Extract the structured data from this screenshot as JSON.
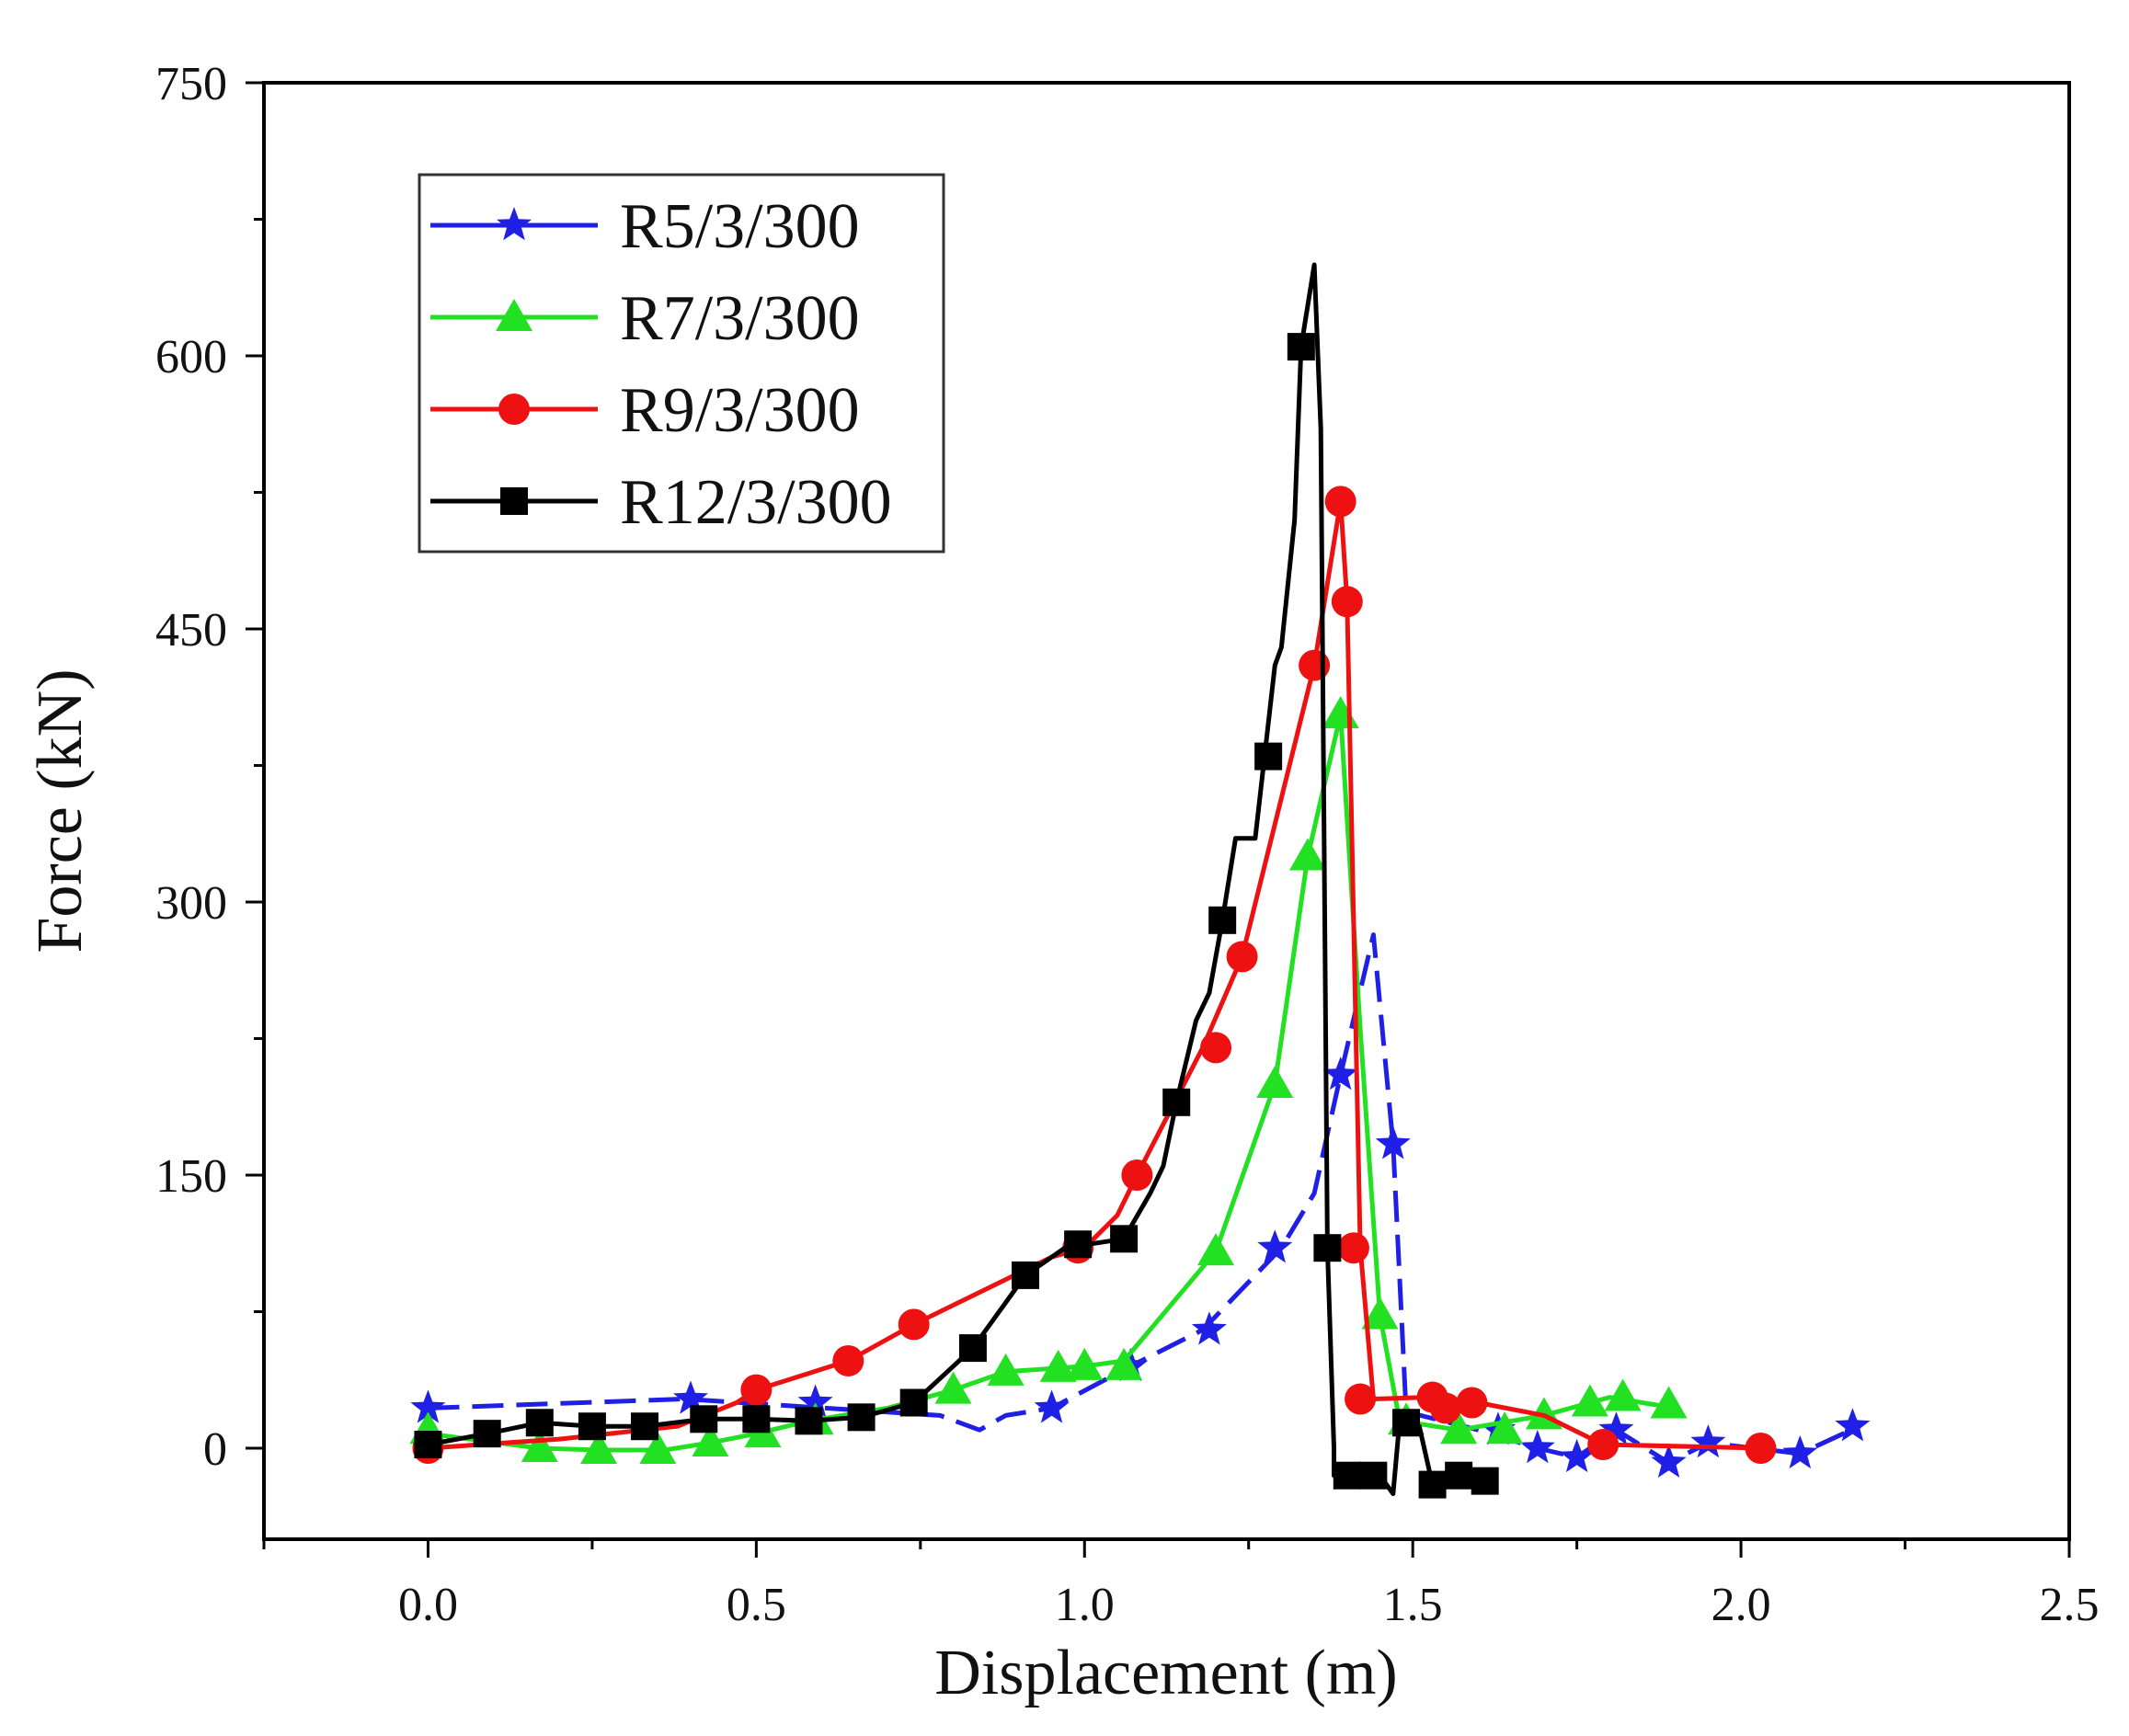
{
  "chart_data": {
    "type": "line",
    "title": "",
    "xlabel": "Displacement (m)",
    "ylabel": "Force (kN)",
    "xlim": [
      -0.25,
      2.5
    ],
    "ylim": [
      -50,
      750
    ],
    "xticks": [
      "0.0",
      "0.5",
      "1.0",
      "1.5",
      "2.0",
      "2.5"
    ],
    "yticks": [
      "0",
      "150",
      "300",
      "450",
      "600",
      "750"
    ],
    "grid": false,
    "legend_position": "top-left",
    "series": [
      {
        "name": "R5/3/300",
        "color": "#1f1fe6",
        "marker": "star",
        "line": [
          [
            0,
            22
          ],
          [
            0.39,
            27
          ],
          [
            0.78,
            18
          ],
          [
            0.84,
            10
          ],
          [
            0.88,
            18
          ],
          [
            0.95,
            22
          ],
          [
            1.07,
            45
          ],
          [
            1.18,
            65
          ],
          [
            1.3,
            110
          ],
          [
            1.35,
            140
          ],
          [
            1.39,
            205
          ],
          [
            1.44,
            282
          ],
          [
            1.47,
            167
          ],
          [
            1.49,
            20
          ],
          [
            1.6,
            10
          ],
          [
            1.69,
            0
          ],
          [
            1.75,
            -5
          ],
          [
            1.81,
            10
          ],
          [
            1.89,
            -8
          ],
          [
            1.95,
            3
          ],
          [
            2.09,
            -3
          ],
          [
            2.18,
            12
          ]
        ],
        "markers": [
          [
            0,
            22
          ],
          [
            0.4,
            27
          ],
          [
            0.59,
            25
          ],
          [
            0.95,
            22
          ],
          [
            1.07,
            45
          ],
          [
            1.19,
            65
          ],
          [
            1.29,
            110
          ],
          [
            1.39,
            205
          ],
          [
            1.47,
            167
          ],
          [
            1.63,
            10
          ],
          [
            1.69,
            0
          ],
          [
            1.75,
            -5
          ],
          [
            1.81,
            10
          ],
          [
            1.89,
            -8
          ],
          [
            1.95,
            3
          ],
          [
            2.09,
            -3
          ],
          [
            2.17,
            12
          ]
        ]
      },
      {
        "name": "R7/3/300",
        "color": "#22e022",
        "marker": "triangle",
        "line": [
          [
            0,
            8
          ],
          [
            0.17,
            0
          ],
          [
            0.26,
            -1
          ],
          [
            0.36,
            -1
          ],
          [
            0.43,
            3
          ],
          [
            0.5,
            8
          ],
          [
            0.58,
            15
          ],
          [
            0.7,
            22
          ],
          [
            0.8,
            32
          ],
          [
            0.88,
            42
          ],
          [
            1.0,
            45
          ],
          [
            1.06,
            48
          ],
          [
            1.2,
            108
          ],
          [
            1.29,
            200
          ],
          [
            1.34,
            325
          ],
          [
            1.39,
            403
          ],
          [
            1.42,
            230
          ],
          [
            1.45,
            73
          ],
          [
            1.48,
            15
          ],
          [
            1.57,
            10
          ],
          [
            1.7,
            18
          ],
          [
            1.8,
            28
          ],
          [
            1.9,
            22
          ]
        ],
        "markers": [
          [
            0,
            10
          ],
          [
            0.17,
            0
          ],
          [
            0.26,
            -1
          ],
          [
            0.35,
            -1
          ],
          [
            0.43,
            3
          ],
          [
            0.51,
            8
          ],
          [
            0.59,
            15
          ],
          [
            0.8,
            32
          ],
          [
            0.88,
            42
          ],
          [
            0.96,
            44
          ],
          [
            1.0,
            45
          ],
          [
            1.06,
            45
          ],
          [
            1.2,
            108
          ],
          [
            1.29,
            200
          ],
          [
            1.34,
            325
          ],
          [
            1.39,
            403
          ],
          [
            1.45,
            73
          ],
          [
            1.49,
            15
          ],
          [
            1.57,
            10
          ],
          [
            1.64,
            10
          ],
          [
            1.7,
            18
          ],
          [
            1.77,
            25
          ],
          [
            1.82,
            28
          ],
          [
            1.89,
            24
          ]
        ]
      },
      {
        "name": "R9/3/300",
        "color": "#ee1111",
        "marker": "circle",
        "line": [
          [
            0,
            0
          ],
          [
            0.2,
            5
          ],
          [
            0.38,
            12
          ],
          [
            0.47,
            25
          ],
          [
            0.5,
            32
          ],
          [
            0.64,
            48
          ],
          [
            0.74,
            68
          ],
          [
            0.95,
            105
          ],
          [
            1.0,
            110
          ],
          [
            1.05,
            128
          ],
          [
            1.08,
            150
          ],
          [
            1.18,
            220
          ],
          [
            1.24,
            270
          ],
          [
            1.35,
            430
          ],
          [
            1.39,
            520
          ],
          [
            1.4,
            465
          ],
          [
            1.42,
            110
          ],
          [
            1.44,
            27
          ],
          [
            1.52,
            28
          ],
          [
            1.6,
            25
          ],
          [
            1.7,
            18
          ],
          [
            1.79,
            2
          ],
          [
            2.03,
            0
          ]
        ],
        "markers": [
          [
            0,
            0
          ],
          [
            0.5,
            32
          ],
          [
            0.64,
            48
          ],
          [
            0.74,
            68
          ],
          [
            0.99,
            110
          ],
          [
            1.08,
            150
          ],
          [
            1.2,
            220
          ],
          [
            1.24,
            270
          ],
          [
            1.35,
            430
          ],
          [
            1.39,
            520
          ],
          [
            1.4,
            465
          ],
          [
            1.41,
            110
          ],
          [
            1.42,
            27
          ],
          [
            1.53,
            28
          ],
          [
            1.55,
            22
          ],
          [
            1.59,
            25
          ],
          [
            1.79,
            2
          ],
          [
            2.03,
            0
          ]
        ]
      },
      {
        "name": "R12/3/300",
        "color": "#000000",
        "marker": "square",
        "line": [
          [
            0,
            2
          ],
          [
            0.09,
            8
          ],
          [
            0.17,
            14
          ],
          [
            0.25,
            12
          ],
          [
            0.33,
            12
          ],
          [
            0.42,
            16
          ],
          [
            0.5,
            16
          ],
          [
            0.58,
            15
          ],
          [
            0.66,
            17
          ],
          [
            0.74,
            25
          ],
          [
            0.8,
            45
          ],
          [
            0.83,
            55
          ],
          [
            0.88,
            80
          ],
          [
            0.91,
            95
          ],
          [
            0.97,
            110
          ],
          [
            1.06,
            115
          ],
          [
            1.1,
            140
          ],
          [
            1.12,
            155
          ],
          [
            1.14,
            190
          ],
          [
            1.17,
            235
          ],
          [
            1.19,
            250
          ],
          [
            1.21,
            290
          ],
          [
            1.23,
            335
          ],
          [
            1.26,
            335
          ],
          [
            1.29,
            430
          ],
          [
            1.3,
            440
          ],
          [
            1.32,
            510
          ],
          [
            1.33,
            605
          ],
          [
            1.35,
            650
          ],
          [
            1.36,
            560
          ],
          [
            1.37,
            110
          ],
          [
            1.38,
            0
          ],
          [
            1.38,
            -15
          ],
          [
            1.42,
            -15
          ],
          [
            1.45,
            -15
          ],
          [
            1.47,
            -25
          ],
          [
            1.48,
            15
          ],
          [
            1.51,
            12
          ],
          [
            1.53,
            -20
          ],
          [
            1.57,
            -15
          ],
          [
            1.62,
            -20
          ]
        ],
        "markers": [
          [
            0,
            2
          ],
          [
            0.09,
            8
          ],
          [
            0.17,
            14
          ],
          [
            0.25,
            12
          ],
          [
            0.33,
            12
          ],
          [
            0.42,
            16
          ],
          [
            0.5,
            16
          ],
          [
            0.58,
            15
          ],
          [
            0.66,
            17
          ],
          [
            0.74,
            25
          ],
          [
            0.83,
            55
          ],
          [
            0.91,
            95
          ],
          [
            0.99,
            112
          ],
          [
            1.06,
            115
          ],
          [
            1.14,
            190
          ],
          [
            1.21,
            290
          ],
          [
            1.28,
            380
          ],
          [
            1.33,
            605
          ],
          [
            1.37,
            110
          ],
          [
            1.4,
            -15
          ],
          [
            1.44,
            -15
          ],
          [
            1.49,
            14
          ],
          [
            1.53,
            -20
          ],
          [
            1.57,
            -15
          ],
          [
            1.61,
            -18
          ]
        ]
      }
    ]
  }
}
